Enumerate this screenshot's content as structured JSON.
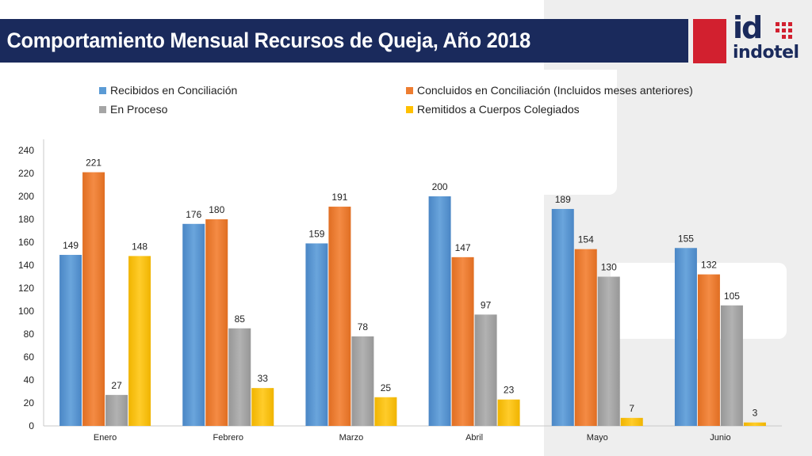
{
  "header": {
    "title": "Comportamiento Mensual Recursos de Queja, Año 2018"
  },
  "logo": {
    "text_top": "id",
    "text_bottom": "indotel",
    "icon": "indotel-logo"
  },
  "colors": {
    "title_bar": "#1a2a5c",
    "brand_red": "#d2202f"
  },
  "chart_data": {
    "type": "bar",
    "categories": [
      "Enero",
      "Febrero",
      "Marzo",
      "Abril",
      "Mayo",
      "Junio"
    ],
    "series": [
      {
        "name": "Recibidos en Conciliación",
        "color": "#5b9bd5",
        "values": [
          149,
          176,
          159,
          200,
          189,
          155
        ]
      },
      {
        "name": "Concluidos en Conciliación (Incluidos meses anteriores)",
        "color": "#ed7d31",
        "values": [
          221,
          180,
          191,
          147,
          154,
          132
        ]
      },
      {
        "name": "En Proceso",
        "color": "#a5a5a5",
        "values": [
          27,
          85,
          78,
          97,
          130,
          105
        ]
      },
      {
        "name": "Remitidos a Cuerpos Colegiados",
        "color": "#ffc000",
        "values": [
          148,
          33,
          25,
          23,
          7,
          3
        ]
      }
    ],
    "yticks": [
      0,
      20,
      40,
      60,
      80,
      100,
      120,
      140,
      160,
      180,
      200,
      220,
      240
    ],
    "ylim": [
      0,
      240
    ],
    "legend_position": "top",
    "grid": false
  }
}
